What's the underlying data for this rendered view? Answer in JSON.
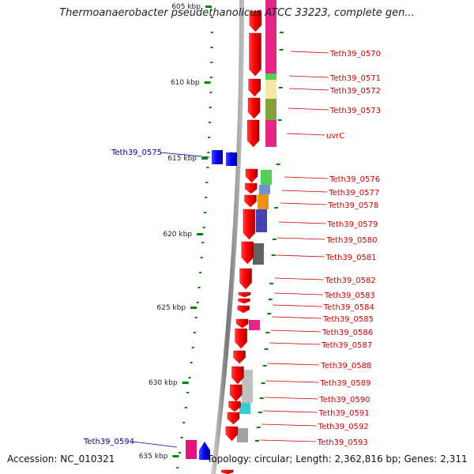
{
  "title": "Thermoanaerobacter pseudethanolicus ATCC 33223, complete gen...",
  "footer": {
    "accession": "Accession: NC_010321",
    "summary": "Topology: circular; Length: 2,362,816 bp; Genes: 2,311"
  },
  "colors": {
    "backbone": "#888888",
    "forward_strand": "#e60000",
    "reverse_strand": "#0000dd",
    "tick": "#008800",
    "label_right": "#cc0000",
    "label_left": "#000099"
  },
  "scale": {
    "unit": "kbp",
    "major_ticks": [
      {
        "label": "605 kbp"
      },
      {
        "label": "610 kbp"
      },
      {
        "label": "615 kbp"
      },
      {
        "label": "620 kbp"
      },
      {
        "label": "625 kbp"
      },
      {
        "label": "630 kbp"
      },
      {
        "label": "635 kbp"
      }
    ]
  },
  "right_genes": [
    {
      "label": "Teth39_0570",
      "cog_color": "#e0157f"
    },
    {
      "label": "Teth39_0571",
      "cog_color": "#44cc44"
    },
    {
      "label": "Teth39_0572",
      "cog_color": "#f2e59a"
    },
    {
      "label": "Teth39_0573",
      "cog_color": "#7a9a2a"
    },
    {
      "label": "uvrC",
      "cog_color": "#e0157f"
    },
    {
      "label": "Teth39_0576",
      "cog_color": "#44cc44"
    },
    {
      "label": "Teth39_0577",
      "cog_color": "#6688cc"
    },
    {
      "label": "Teth39_0578",
      "cog_color": "#ee8800"
    },
    {
      "label": "Teth39_0579",
      "cog_color": "#3333aa"
    },
    {
      "label": "Teth39_0580",
      "cog_color": ""
    },
    {
      "label": "Teth39_0581",
      "cog_color": "#555555"
    },
    {
      "label": "Teth39_0582",
      "cog_color": ""
    },
    {
      "label": "Teth39_0583",
      "cog_color": ""
    },
    {
      "label": "Teth39_0584",
      "cog_color": ""
    },
    {
      "label": "Teth39_0585",
      "cog_color": ""
    },
    {
      "label": "Teth39_0586",
      "cog_color": "#e0157f"
    },
    {
      "label": "Teth39_0587",
      "cog_color": ""
    },
    {
      "label": "Teth39_0588",
      "cog_color": ""
    },
    {
      "label": "Teth39_0589",
      "cog_color": "#bbbbbb"
    },
    {
      "label": "Teth39_0590",
      "cog_color": "#bbbbbb"
    },
    {
      "label": "Teth39_0591",
      "cog_color": "#22cccc"
    },
    {
      "label": "Teth39_0592",
      "cog_color": ""
    },
    {
      "label": "Teth39_0593",
      "cog_color": "#999999"
    }
  ],
  "left_genes": [
    {
      "label": "Teth39_0575"
    },
    {
      "label": "Teth39_0594"
    }
  ]
}
